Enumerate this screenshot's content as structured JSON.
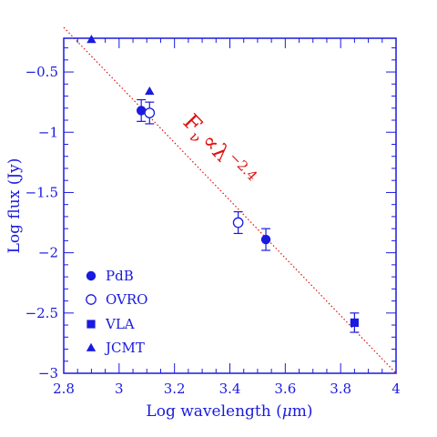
{
  "chart_data": {
    "type": "scatter",
    "xlabel_main": "Log wavelength (",
    "xlabel_mu": "μ",
    "xlabel_end": "m)",
    "ylabel": "Log flux (Jy)",
    "xlim": [
      2.8,
      4.0
    ],
    "ylim": [
      -3.0,
      -0.22
    ],
    "xticks": [
      "2.8",
      "3",
      "3.2",
      "3.4",
      "3.6",
      "3.8",
      "4"
    ],
    "yticks": [
      "−0.5",
      "−1",
      "−1.5",
      "−2",
      "−2.5",
      "−3"
    ],
    "series": [
      {
        "name": "PdB",
        "marker": "filled-circle",
        "points": [
          {
            "x": 3.08,
            "y": -0.82,
            "err": 0.09
          },
          {
            "x": 3.53,
            "y": -1.89,
            "err": 0.09
          }
        ]
      },
      {
        "name": "OVRO",
        "marker": "open-circle",
        "points": [
          {
            "x": 3.11,
            "y": -0.84,
            "err": 0.09
          },
          {
            "x": 3.43,
            "y": -1.75,
            "err": 0.09
          }
        ]
      },
      {
        "name": "VLA",
        "marker": "filled-square",
        "points": [
          {
            "x": 3.85,
            "y": -2.58,
            "err": 0.08
          }
        ]
      },
      {
        "name": "JCMT",
        "marker": "filled-triangle",
        "points": [
          {
            "x": 2.9,
            "y": -0.23
          },
          {
            "x": 3.11,
            "y": -0.66
          }
        ]
      }
    ],
    "fit_line": {
      "x": [
        2.8,
        4.0
      ],
      "y": [
        -0.13,
        -3.0
      ]
    },
    "annotation": {
      "base": "F",
      "sub": "ν",
      "middle": "∝λ",
      "sup": "−2.4"
    },
    "legend_position": "bottom-left",
    "colors": {
      "axes": "#1a1ae0",
      "markers": "#1a1ae0",
      "fit": "#e01010"
    }
  }
}
